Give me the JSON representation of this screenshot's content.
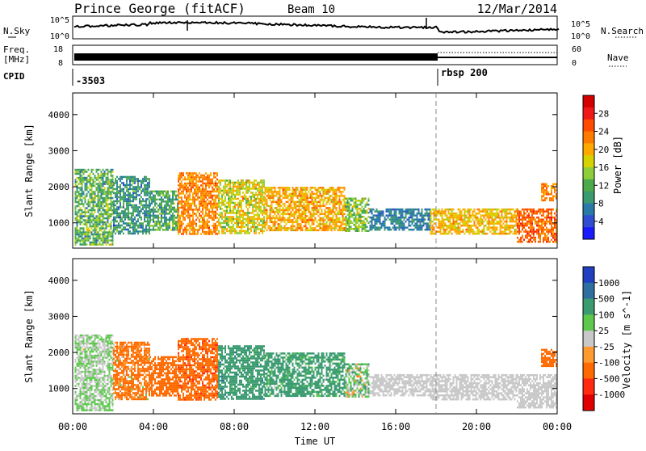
{
  "header": {
    "station": "Prince George (fitACF)",
    "beam": "Beam 10",
    "date": "12/Mar/2014"
  },
  "status_panels": {
    "nsky": {
      "label": "N.Sky",
      "left_ticks": [
        "10^5",
        "10^0"
      ],
      "right_ticks": [
        "10^5",
        "10^0"
      ],
      "right_label": "N.Search"
    },
    "freq": {
      "label_top": "Freq.",
      "label_bottom": "[MHz]",
      "left_ticks": [
        "18",
        "8"
      ],
      "right_ticks": [
        "60",
        "0"
      ],
      "right_label": "Nave"
    },
    "cpid": {
      "label": "CPID",
      "segments": [
        {
          "label": "-3503",
          "start_hour": 0
        },
        {
          "label": "rbsp 200",
          "start_hour": 18
        }
      ]
    }
  },
  "chart_data": [
    {
      "type": "heatmap",
      "quantity": "Power",
      "ylabel": "Slant Range [km]",
      "xlabel": "Time UT",
      "xlim": [
        0,
        24
      ],
      "ylim": [
        300,
        4600
      ],
      "y_ticks": [
        1000,
        2000,
        3000,
        4000
      ],
      "x_ticks": [
        "00:00",
        "04:00",
        "08:00",
        "12:00",
        "16:00",
        "20:00",
        "00:00"
      ],
      "colorbar": {
        "label": "Power [dB]",
        "range": [
          0,
          32
        ],
        "tick_labels": [
          "4",
          "8",
          "12",
          "16",
          "20",
          "24",
          "28"
        ],
        "tick_values": [
          4,
          8,
          12,
          16,
          20,
          24,
          28
        ],
        "colors": [
          "#1a1aff",
          "#2f4fd0",
          "#2a7aa8",
          "#3a9a70",
          "#4caa4c",
          "#8fce3a",
          "#d6d200",
          "#ffa800",
          "#ff7a00",
          "#ff4a00",
          "#f01818",
          "#d40000"
        ]
      },
      "marker": {
        "hour": 18,
        "style": "dashed"
      },
      "scatter_echoes": [
        {
          "start_hour": 0.1,
          "end_hour": 2.0,
          "range_min": 400,
          "range_max": 2500,
          "mean": 12,
          "spread": 10
        },
        {
          "start_hour": 2.0,
          "end_hour": 3.8,
          "range_min": 700,
          "range_max": 2300,
          "mean": 9,
          "spread": 7
        },
        {
          "start_hour": 3.8,
          "end_hour": 5.2,
          "range_min": 800,
          "range_max": 1900,
          "mean": 11,
          "spread": 8
        },
        {
          "start_hour": 5.2,
          "end_hour": 7.2,
          "range_min": 700,
          "range_max": 2400,
          "mean": 22,
          "spread": 6
        },
        {
          "start_hour": 7.2,
          "end_hour": 9.5,
          "range_min": 700,
          "range_max": 2200,
          "mean": 17,
          "spread": 8
        },
        {
          "start_hour": 9.5,
          "end_hour": 13.5,
          "range_min": 800,
          "range_max": 2000,
          "mean": 20,
          "spread": 7
        },
        {
          "start_hour": 13.5,
          "end_hour": 14.7,
          "range_min": 800,
          "range_max": 1700,
          "mean": 14,
          "spread": 8
        },
        {
          "start_hour": 14.7,
          "end_hour": 17.7,
          "range_min": 800,
          "range_max": 1400,
          "mean": 7,
          "spread": 5
        },
        {
          "start_hour": 17.7,
          "end_hour": 22.0,
          "range_min": 700,
          "range_max": 1400,
          "mean": 19,
          "spread": 6
        },
        {
          "start_hour": 22.0,
          "end_hour": 24.0,
          "range_min": 450,
          "range_max": 1400,
          "mean": 24,
          "spread": 6
        },
        {
          "start_hour": 23.2,
          "end_hour": 24.0,
          "range_min": 1600,
          "range_max": 2100,
          "mean": 22,
          "spread": 5
        }
      ]
    },
    {
      "type": "heatmap",
      "quantity": "Velocity",
      "ylabel": "Slant Range [km]",
      "xlabel": "Time UT",
      "xlim": [
        0,
        24
      ],
      "ylim": [
        300,
        4600
      ],
      "y_ticks": [
        1000,
        2000,
        3000,
        4000
      ],
      "x_ticks": [
        "00:00",
        "04:00",
        "08:00",
        "12:00",
        "16:00",
        "20:00",
        "00:00"
      ],
      "colorbar": {
        "label": "Velocity [m s^-1]",
        "tick_labels": [
          "1000",
          "500",
          "100",
          "25",
          "-25",
          "-100",
          "-500",
          "-1000"
        ],
        "colors": [
          "#2040c0",
          "#2f6fa0",
          "#3a9a70",
          "#5cc84c",
          "#c8c8c8",
          "#ff9a30",
          "#ff6a00",
          "#ff2a10",
          "#e00000"
        ]
      },
      "marker": {
        "hour": 18,
        "style": "dashed"
      },
      "scatter_echoes": [
        {
          "start_hour": 0.1,
          "end_hour": 2.0,
          "range_min": 400,
          "range_max": 2500,
          "mean": 25,
          "spread": 60
        },
        {
          "start_hour": 2.0,
          "end_hour": 3.8,
          "range_min": 700,
          "range_max": 2300,
          "mean": -150,
          "spread": 250
        },
        {
          "start_hour": 3.8,
          "end_hour": 5.2,
          "range_min": 800,
          "range_max": 1900,
          "mean": -300,
          "spread": 200
        },
        {
          "start_hour": 5.2,
          "end_hour": 7.2,
          "range_min": 700,
          "range_max": 2400,
          "mean": -400,
          "spread": 250
        },
        {
          "start_hour": 7.2,
          "end_hour": 9.5,
          "range_min": 700,
          "range_max": 2200,
          "mean": 300,
          "spread": 300
        },
        {
          "start_hour": 9.5,
          "end_hour": 13.5,
          "range_min": 800,
          "range_max": 2000,
          "mean": 200,
          "spread": 250
        },
        {
          "start_hour": 13.5,
          "end_hour": 14.7,
          "range_min": 800,
          "range_max": 1700,
          "mean": 50,
          "spread": 200
        },
        {
          "start_hour": 14.7,
          "end_hour": 17.7,
          "range_min": 800,
          "range_max": 1400,
          "mean": 0,
          "spread": 15
        },
        {
          "start_hour": 17.7,
          "end_hour": 22.0,
          "range_min": 700,
          "range_max": 1400,
          "mean": 0,
          "spread": 15
        },
        {
          "start_hour": 22.0,
          "end_hour": 24.0,
          "range_min": 450,
          "range_max": 1400,
          "mean": 0,
          "spread": 20
        },
        {
          "start_hour": 23.2,
          "end_hour": 24.0,
          "range_min": 1600,
          "range_max": 2100,
          "mean": -200,
          "spread": 150
        }
      ]
    }
  ]
}
